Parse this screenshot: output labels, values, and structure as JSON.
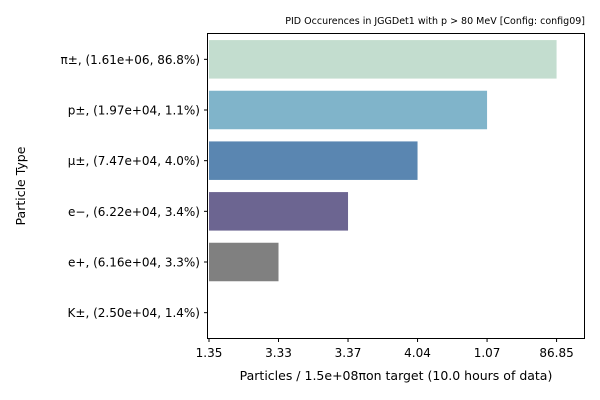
{
  "chart_data": {
    "type": "bar",
    "orientation": "horizontal",
    "title": "PID Occurences in JGGDet1 with p > 80 MeV [Config: config09]",
    "xlabel": "Particles / 1.5e+08πon target (10.0 hours of data)",
    "ylabel": "Particle Type",
    "grid": false,
    "x_tick_labels": [
      "1.35",
      "3.33",
      "3.37",
      "4.04",
      "1.07",
      "86.85"
    ],
    "categories": [
      "π±, (1.61e+06, 86.8%)",
      "p±, (1.97e+04, 1.1%)",
      "μ±, (7.47e+04, 4.0%)",
      "e−, (6.22e+04, 3.4%)",
      "e+, (6.16e+04, 3.3%)",
      "K±, (2.50e+04, 1.4%)"
    ],
    "values": [
      5,
      4,
      3,
      2,
      1,
      0
    ],
    "xlim": [
      0,
      5.15
    ],
    "colors": [
      "#c3ddcf",
      "#80b4ca",
      "#5a86b1",
      "#6c6591",
      "#808080",
      "#ffffff"
    ]
  }
}
